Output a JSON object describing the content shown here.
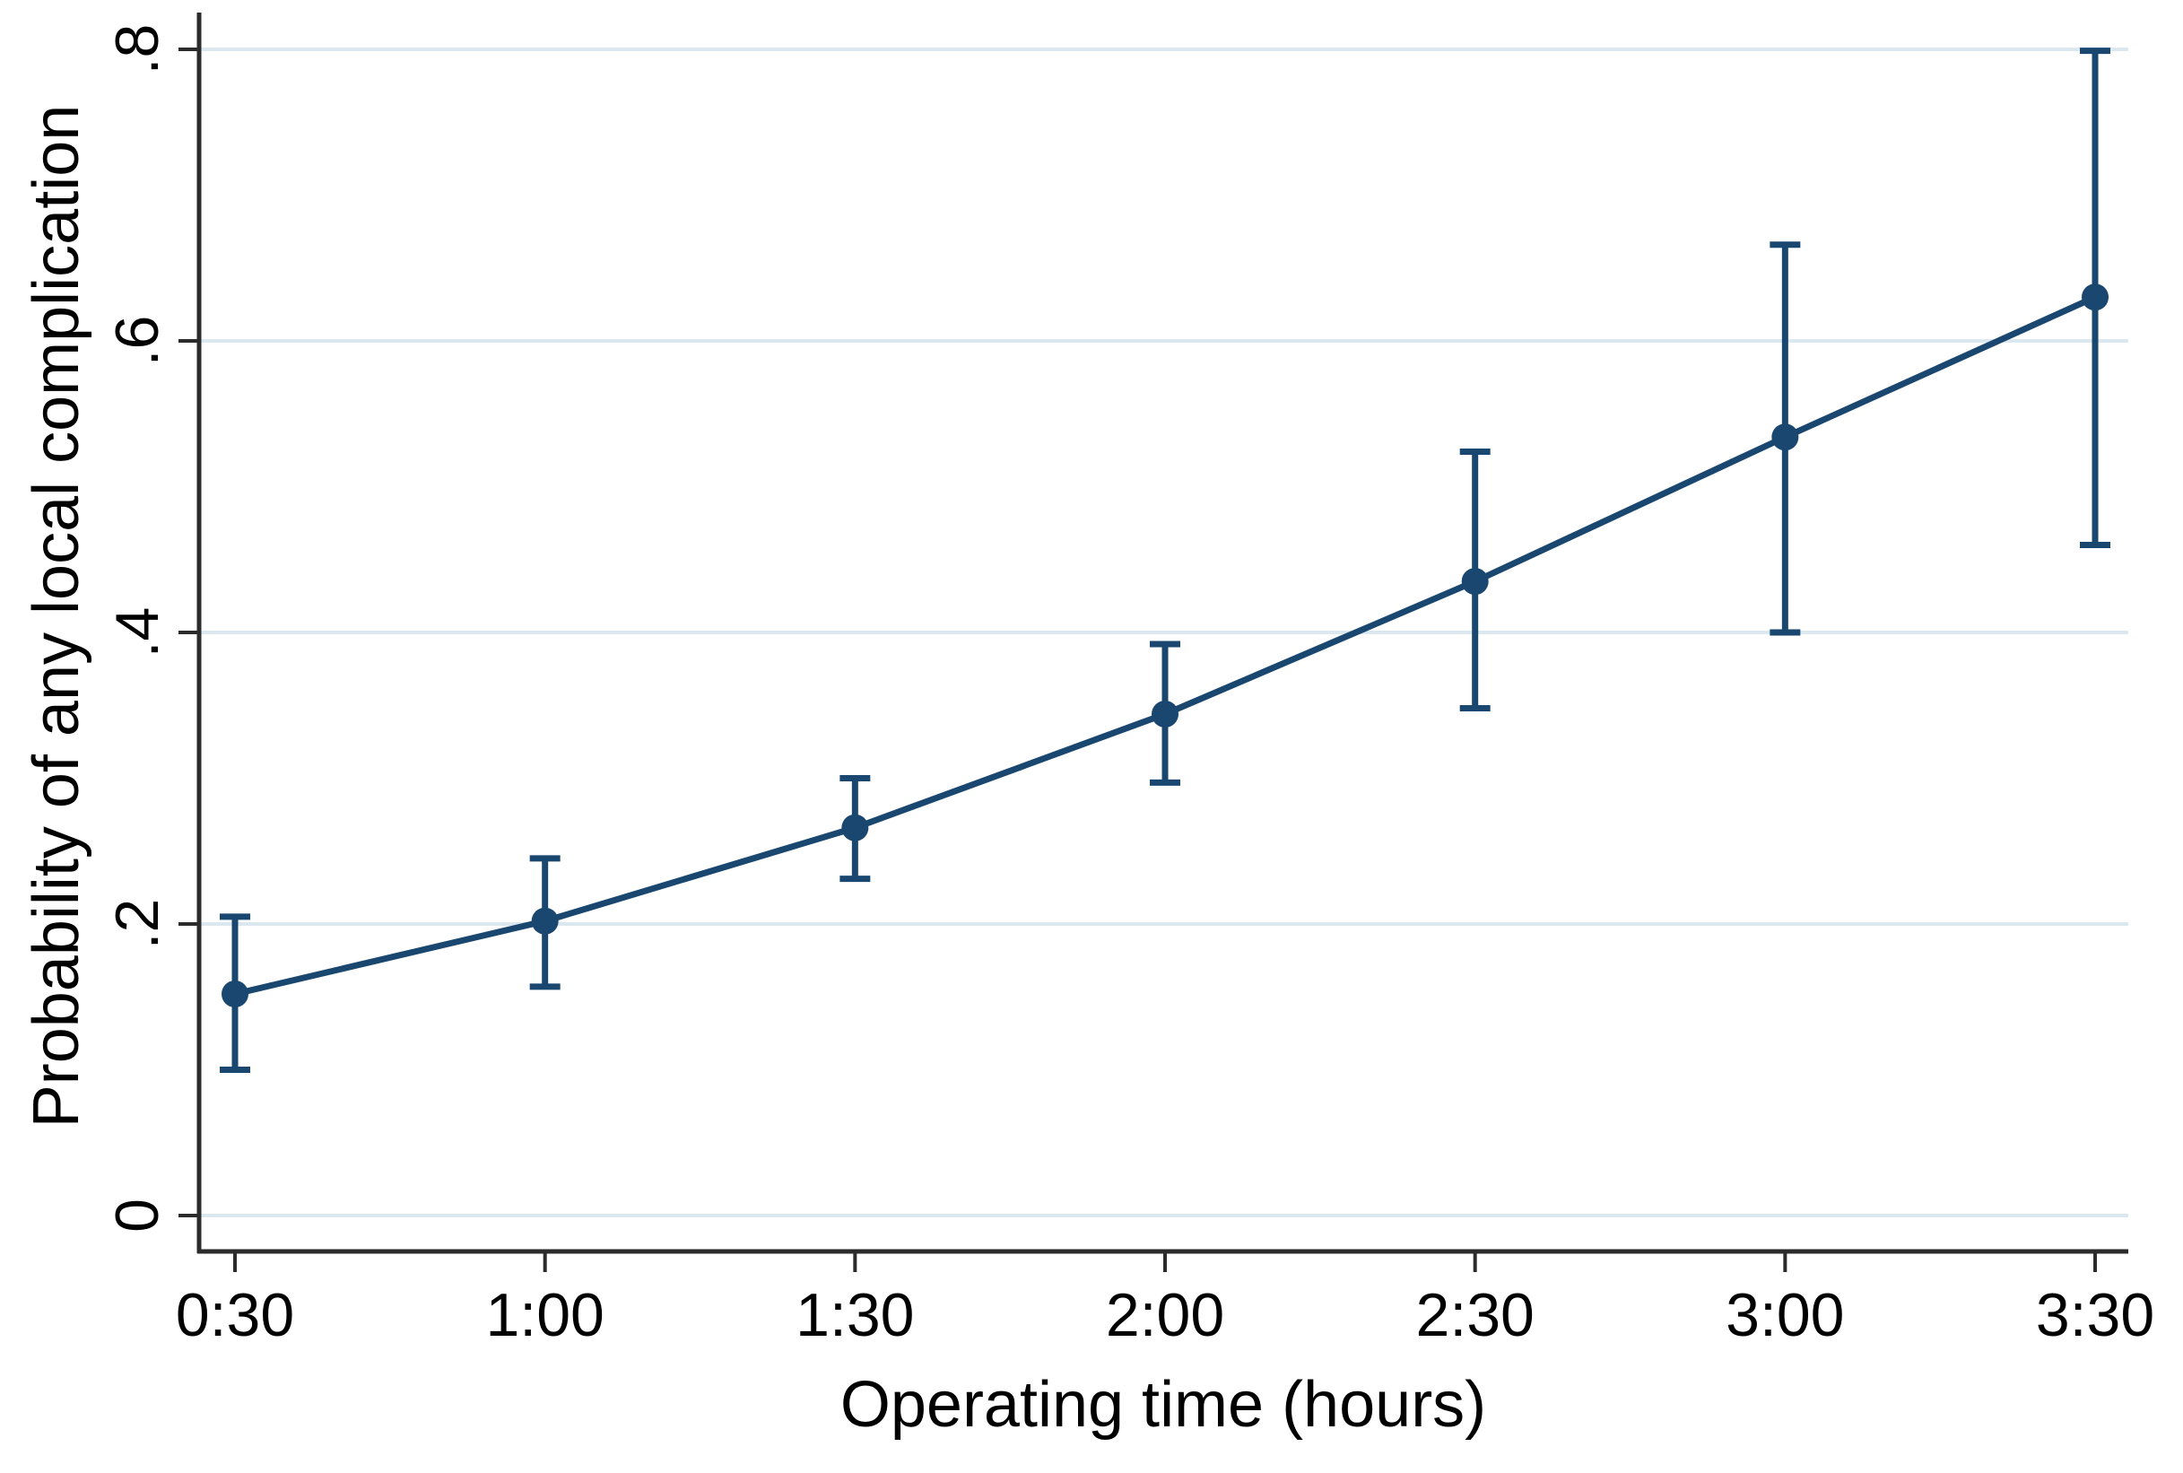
{
  "chart_data": {
    "type": "line",
    "title": "",
    "xlabel": "Operating time (hours)",
    "ylabel": "Probability of any local complication",
    "categories": [
      "0:30",
      "1:00",
      "1:30",
      "2:00",
      "2:30",
      "3:00",
      "3:30"
    ],
    "series": [
      {
        "values": [
          0.152,
          0.202,
          0.266,
          0.344,
          0.435,
          0.534,
          0.63
        ],
        "ci_low": [
          0.1,
          0.157,
          0.231,
          0.297,
          0.348,
          0.4,
          0.46
        ],
        "ci_high": [
          0.205,
          0.245,
          0.3,
          0.392,
          0.524,
          0.666,
          0.799
        ]
      }
    ],
    "y_ticks": [
      0,
      0.2,
      0.4,
      0.6,
      0.8
    ],
    "y_tick_labels": [
      "0",
      ".2",
      ".4",
      ".6",
      ".8"
    ],
    "ylim": [
      0,
      0.8
    ],
    "grid": true,
    "error_bars": true,
    "legend_position": "none",
    "colors": {
      "series": "#1a476f",
      "grid": "#dce8f0",
      "axis": "#2b2b2b",
      "text": "#000000"
    }
  }
}
